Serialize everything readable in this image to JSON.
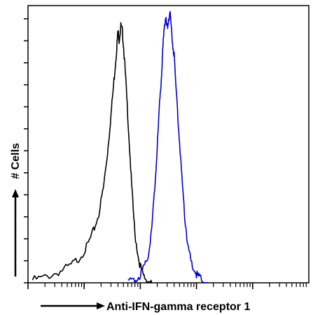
{
  "chart_data": {
    "type": "line",
    "title": "",
    "xlabel": "Anti-IFN-gamma receptor 1",
    "ylabel": "# Cells",
    "x_scale": "log",
    "xlim": [
      0.1,
      10000
    ],
    "ylim": [
      0,
      100
    ],
    "grid": false,
    "legend": "none",
    "series": [
      {
        "color": "#000000",
        "x": [
          0.12,
          0.2,
          0.35,
          0.55,
          0.8,
          1.1,
          1.4,
          1.8,
          2.2,
          2.6,
          3.0,
          3.4,
          3.7,
          4.0,
          4.2,
          4.5,
          4.8,
          5.1,
          5.5,
          6.2,
          7.0,
          8.0,
          9.5,
          11,
          13,
          16
        ],
        "y": [
          1,
          2,
          4,
          6,
          9,
          13,
          18,
          25,
          35,
          48,
          62,
          75,
          84,
          93,
          90,
          95,
          93,
          86,
          75,
          56,
          36,
          18,
          8,
          3,
          1,
          0
        ]
      },
      {
        "color": "#0000cc",
        "x": [
          6,
          8,
          10,
          12,
          14,
          16,
          18,
          20,
          22,
          24,
          25,
          27,
          28,
          30,
          32,
          34,
          37,
          40,
          45,
          50,
          55,
          62,
          70,
          80,
          95,
          110,
          130,
          160
        ],
        "y": [
          0,
          1,
          3,
          6,
          11,
          20,
          35,
          50,
          66,
          78,
          86,
          96,
          98,
          94,
          98,
          100,
          90,
          84,
          66,
          52,
          38,
          24,
          14,
          8,
          4,
          2,
          1,
          0
        ]
      }
    ]
  }
}
